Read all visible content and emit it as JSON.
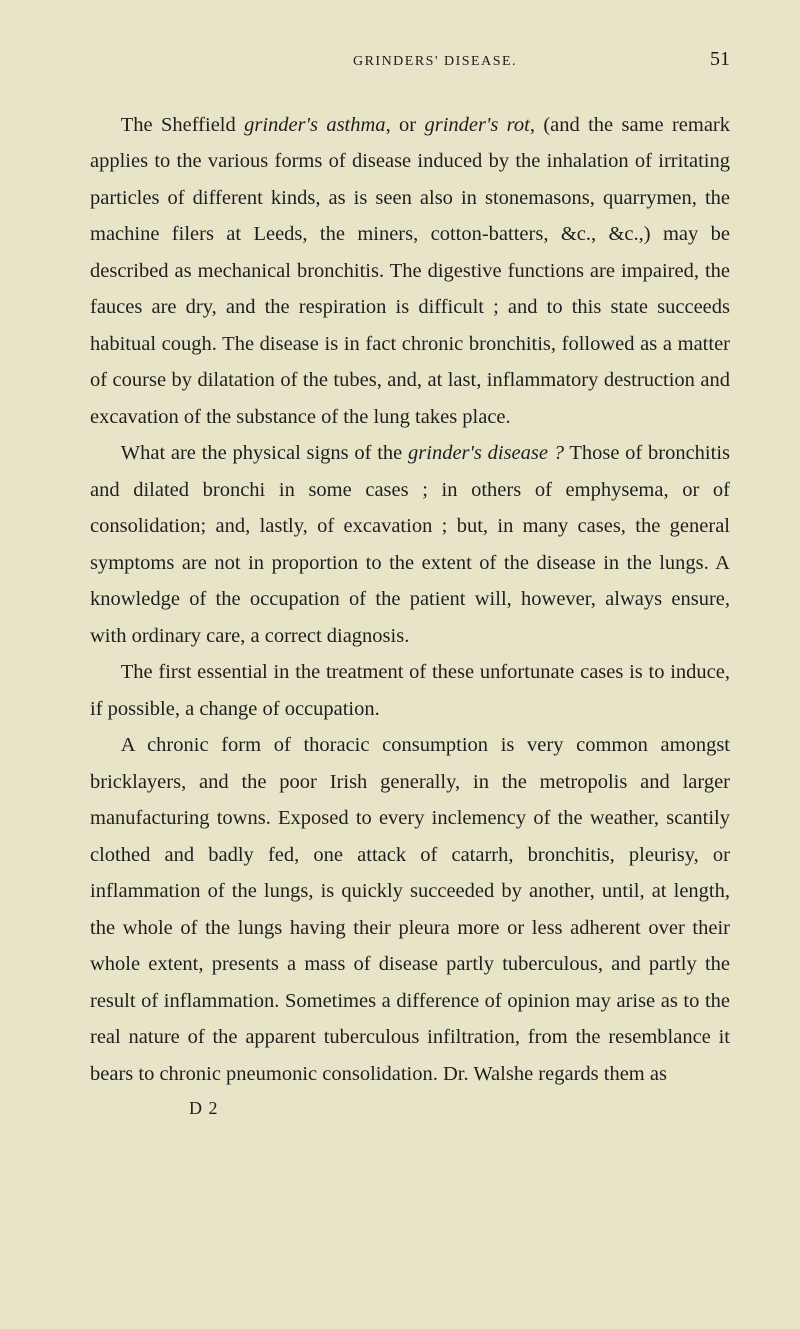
{
  "header": {
    "running_head": "GRINDERS' DISEASE.",
    "page_number": "51"
  },
  "paragraphs": {
    "p1_a": "The Sheffield ",
    "p1_i1": "grinder's asthma",
    "p1_b": ", or ",
    "p1_i2": "grinder's rot",
    "p1_c": ", (and the same remark applies to the various forms of disease induced by the inhalation of irritating particles of different kinds, as is seen also in stonemasons, quarrymen, the machine filers at Leeds, the miners, cotton-batters, &c., &c.,) may be described as mechanical bronchitis. The digestive functions are impaired, the fauces are dry, and the respiration is difficult ; and to this state succeeds habitual cough. The disease is in fact chronic bronchitis, followed as a matter of course by dilatation of the tubes, and, at last, inflammatory destruction and excavation of the substance of the lung takes place.",
    "p2_a": "What are the physical signs of the ",
    "p2_i1": "grinder's disease ?",
    "p2_b": " Those of bronchitis and dilated bronchi in some cases ; in others of emphysema, or of consolidation; and, lastly, of excavation ; but, in many cases, the general symptoms are not in proportion to the extent of the disease in the lungs. A knowledge of the occupation of the patient will, however, always ensure, with ordinary care, a correct diagnosis.",
    "p3": "The first essential in the treatment of these unfortunate cases is to induce, if possible, a change of occupation.",
    "p4": "A chronic form of thoracic consumption is very common amongst bricklayers, and the poor Irish generally, in the metropolis and larger manufacturing towns. Exposed to every inclemency of the weather, scantily clothed and badly fed, one attack of catarrh, bronchitis, pleurisy, or inflammation of the lungs, is quickly succeeded by another, until, at length, the whole of the lungs having their pleura more or less adherent over their whole extent, presents a mass of disease partly tuberculous, and partly the result of inflammation. Sometimes a difference of opinion may arise as to the real nature of the apparent tuberculous infiltration, from the resemblance it bears to chronic pneumonic consolidation. Dr. Walshe regards them as"
  },
  "signature": "D 2"
}
